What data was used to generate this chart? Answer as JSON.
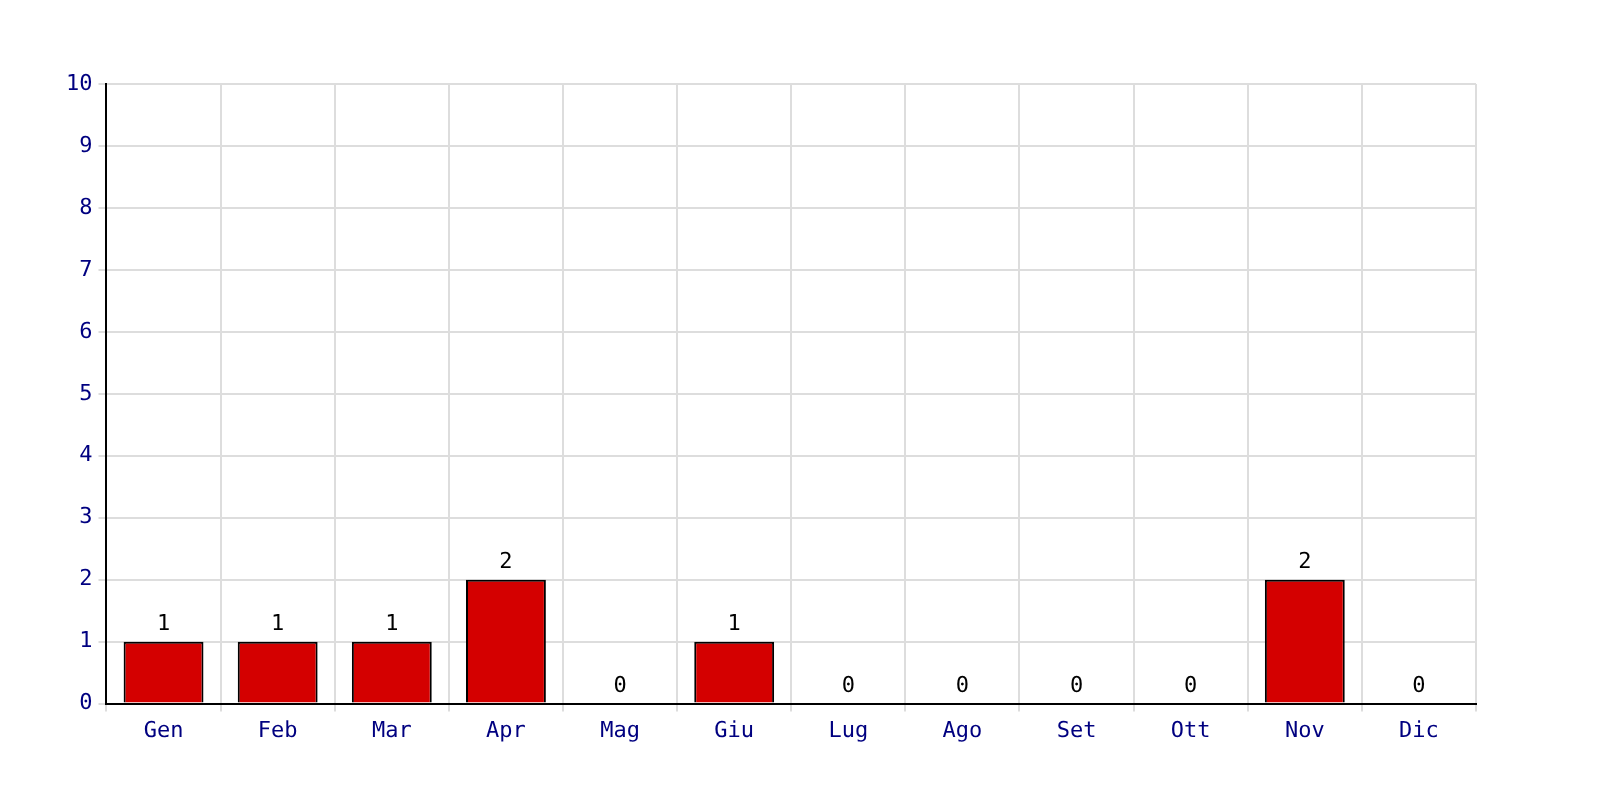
{
  "chart_data": {
    "type": "bar",
    "categories": [
      "Gen",
      "Feb",
      "Mar",
      "Apr",
      "Mag",
      "Giu",
      "Lug",
      "Ago",
      "Set",
      "Ott",
      "Nov",
      "Dic"
    ],
    "values": [
      1,
      1,
      1,
      2,
      0,
      1,
      0,
      0,
      0,
      0,
      2,
      0
    ],
    "color": "#d40000",
    "ylim": [
      0,
      10
    ],
    "yticks": [
      0,
      1,
      2,
      3,
      4,
      5,
      6,
      7,
      8,
      9,
      10
    ],
    "grid": true,
    "legend": false,
    "data_labels": true
  }
}
